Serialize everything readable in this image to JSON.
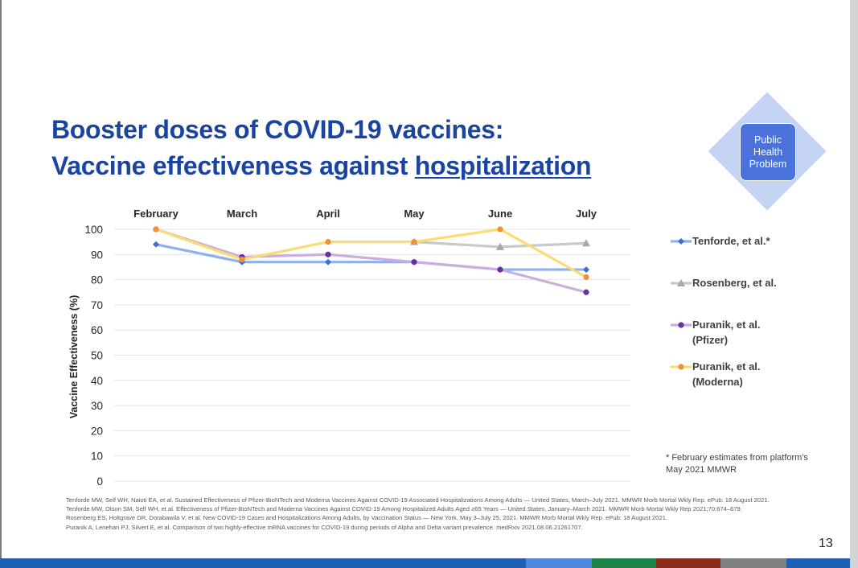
{
  "slide": {
    "title_line1": "Booster doses of COVID-19 vaccines:",
    "title_line2_prefix": "Vaccine effectiveness against ",
    "title_line2_emphasis": "hospitalization",
    "badge_text": "Public Health Problem",
    "footnote": "* February estimates from platform's May 2021 MMWR",
    "page_number": "13",
    "references": [
      "Tenforde MW, Self WH, Naioti EA, et al. Sustained Effectiveness of Pfizer-BioNTech and Moderna Vaccines Against COVID-19 Associated Hospitalizations Among Adults — United States, March–July 2021. MMWR Morb Mortal Wkly Rep. ePub: 18 August 2021.",
      "Tenforde MW, Olson SM, Self WH, et al. Effectiveness of Pfizer-BioNTech and Moderna Vaccines Against COVID-19 Among Hospitalized Adults Aged ≥65 Years — United States, January–March 2021. MMWR Morb Mortal Wkly Rep 2021;70:674–679.",
      "Rosenberg ES, Holtgrave DR, Dorabawila V, et al. New COVID-19 Cases and Hospitalizations Among Adults, by Vaccination Status — New York, May 3–July 25, 2021. MMWR Morb Mortal Wkly Rep. ePub: 18 August 2021.",
      "Puranik A, Lenehan PJ, Silvert E, et al. Comparison of two highly-effective mRNA vaccines for COVID-19 during periods of Alpha and Delta variant prevalence. medRxiv 2021.08.06.21261707."
    ],
    "colors": {
      "title": "#1a44a0",
      "badge": "#4a72da",
      "diamond": "#c5d3f3",
      "bottom_bar": [
        "#1f5fb5",
        "#4f86e0",
        "#1e8449",
        "#8b2b1a",
        "#7f7f7f",
        "#1f5fb5"
      ]
    }
  },
  "chart_data": {
    "type": "line",
    "title": "",
    "xlabel": "",
    "ylabel": "Vaccine Effectiveness (%)",
    "categories": [
      "February",
      "March",
      "April",
      "May",
      "June",
      "July"
    ],
    "ylim": [
      0,
      100
    ],
    "yticks": [
      0,
      10,
      20,
      30,
      40,
      50,
      60,
      70,
      80,
      90,
      100
    ],
    "grid": true,
    "legend_position": "right",
    "series": [
      {
        "name": "Tenforde, et al.*",
        "color": "#8fb0ee",
        "marker": "diamond",
        "marker_color": "#3d6ed1",
        "values": [
          94,
          87,
          87,
          87,
          84,
          84
        ]
      },
      {
        "name": "Rosenberg, et al.",
        "color": "#c9c9c9",
        "marker": "triangle",
        "marker_color": "#a8a8a8",
        "values": [
          null,
          null,
          null,
          95,
          93,
          94.5
        ]
      },
      {
        "name": "Puranik, et al.\n(Pfizer)",
        "color": "#c9aee0",
        "marker": "circle",
        "marker_color": "#6a2fa0",
        "values": [
          100,
          89,
          90,
          87,
          84,
          75
        ]
      },
      {
        "name": "Puranik, et al.\n(Moderna)",
        "color": "#fbdc72",
        "marker": "circle",
        "marker_color": "#f0913a",
        "values": [
          100,
          88,
          95,
          95,
          100,
          81
        ]
      }
    ]
  }
}
